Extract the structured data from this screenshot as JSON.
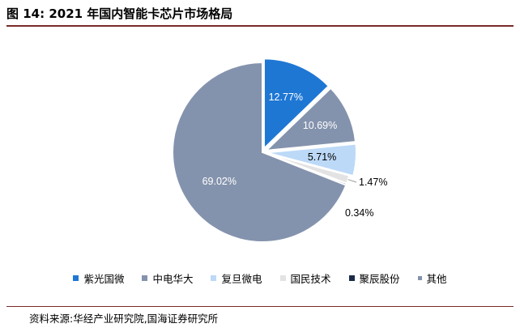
{
  "header": {
    "title": "图 14:  2021 年国内智能卡芯片市场格局"
  },
  "source_note": "资料来源:华经产业研究院,国海证券研究所",
  "chart_data": {
    "type": "pie",
    "title": "",
    "slices": [
      {
        "name": "紫光国微",
        "value": 12.77,
        "label": "12.77%",
        "color": "#1f77d4"
      },
      {
        "name": "中电华大",
        "value": 10.69,
        "label": "10.69%",
        "color": "#8493ad"
      },
      {
        "name": "复旦微电",
        "value": 5.71,
        "label": "5.71%",
        "color": "#bcd9f7"
      },
      {
        "name": "国民技术",
        "value": 1.47,
        "label": "1.47%",
        "color": "#e3e3e3"
      },
      {
        "name": "聚辰股份",
        "value": 0.34,
        "label": "0.34%",
        "color": "#1a2a48"
      },
      {
        "name": "其他",
        "value": 69.02,
        "label": "69.02%",
        "color": "#8493ad"
      }
    ],
    "start_angle": "12 o'clock",
    "direction": "clockwise",
    "legend_position": "bottom"
  }
}
